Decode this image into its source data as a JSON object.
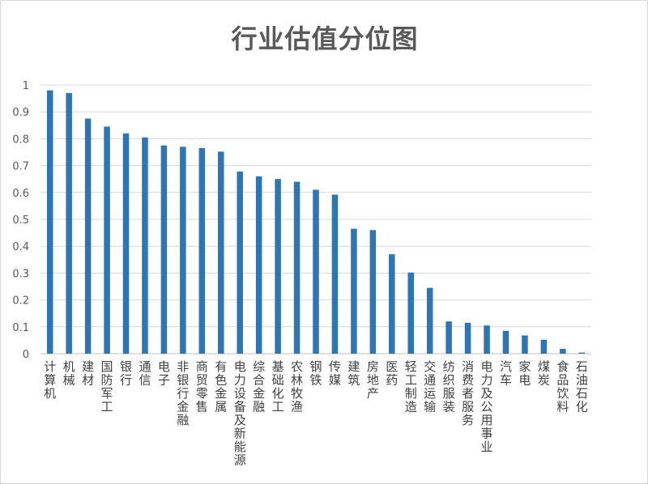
{
  "chart_data": {
    "type": "bar",
    "title": "行业估值分位图",
    "xlabel": "",
    "ylabel": "",
    "ylim": [
      0,
      1
    ],
    "yticks": [
      "0",
      "0.1",
      "0.2",
      "0.3",
      "0.4",
      "0.5",
      "0.6",
      "0.7",
      "0.8",
      "0.9",
      "1"
    ],
    "grid": true,
    "legend": "none",
    "bar_color": "#2e75b6",
    "categories": [
      "计算机",
      "机械",
      "建材",
      "国防军工",
      "银行",
      "通信",
      "电子",
      "非银行金融",
      "商贸零售",
      "有色金属",
      "电力设备及新能源",
      "综合金融",
      "基础化工",
      "农林牧渔",
      "钢铁",
      "传媒",
      "建筑",
      "房地产",
      "医药",
      "轻工制造",
      "交通运输",
      "纺织服装",
      "消费者服务",
      "电力及公用事业",
      "汽车",
      "家电",
      "煤炭",
      "食品饮料",
      "石油石化"
    ],
    "values": [
      0.98,
      0.97,
      0.875,
      0.845,
      0.82,
      0.805,
      0.775,
      0.77,
      0.765,
      0.752,
      0.678,
      0.66,
      0.65,
      0.64,
      0.61,
      0.592,
      0.465,
      0.46,
      0.37,
      0.302,
      0.245,
      0.12,
      0.115,
      0.105,
      0.085,
      0.068,
      0.052,
      0.018,
      0.004
    ]
  }
}
